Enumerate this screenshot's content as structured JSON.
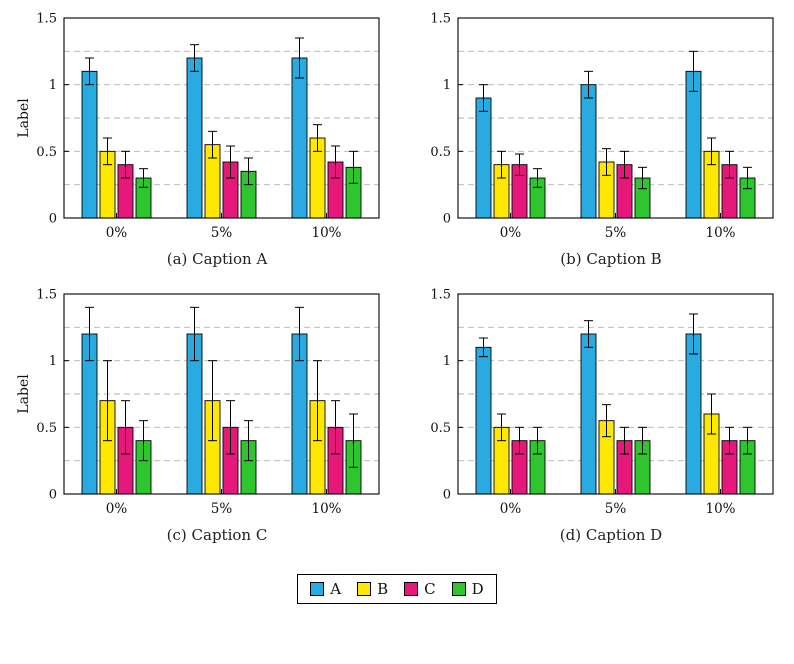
{
  "figure": {
    "background": "#ffffff"
  },
  "axis_style": {
    "axis_color": "#000000",
    "grid_color": "#b3b3b3",
    "grid_values": [
      0.25,
      0.5,
      0.75,
      1.0,
      1.25
    ],
    "grid_style": "dashed",
    "legend_position": "bottom-center"
  },
  "legend": {
    "items": [
      {
        "label": "A",
        "color": "#29ABE2"
      },
      {
        "label": "B",
        "color": "#FFE800"
      },
      {
        "label": "C",
        "color": "#E6197B"
      },
      {
        "label": "D",
        "color": "#2EC52E"
      }
    ]
  },
  "chart_data": [
    {
      "type": "bar",
      "caption": "(a) Caption A",
      "ylabel": "Label",
      "xlabel": "",
      "ylim": [
        0,
        1.5
      ],
      "yticks": [
        0,
        0.5,
        1,
        1.5
      ],
      "ytick_labels": [
        "0",
        "0.5",
        "1",
        "1.5"
      ],
      "categories": [
        "0%",
        "5%",
        "10%"
      ],
      "series": [
        {
          "name": "A",
          "color": "#29ABE2",
          "values": [
            1.1,
            1.2,
            1.2
          ],
          "errors": [
            0.1,
            0.1,
            0.15
          ]
        },
        {
          "name": "B",
          "color": "#FFE800",
          "values": [
            0.5,
            0.55,
            0.6
          ],
          "errors": [
            0.1,
            0.1,
            0.1
          ]
        },
        {
          "name": "C",
          "color": "#E6197B",
          "values": [
            0.4,
            0.42,
            0.42
          ],
          "errors": [
            0.1,
            0.12,
            0.12
          ]
        },
        {
          "name": "D",
          "color": "#2EC52E",
          "values": [
            0.3,
            0.35,
            0.38
          ],
          "errors": [
            0.07,
            0.1,
            0.12
          ]
        }
      ]
    },
    {
      "type": "bar",
      "caption": "(b) Caption B",
      "ylabel": "",
      "xlabel": "",
      "ylim": [
        0,
        1.5
      ],
      "yticks": [
        0,
        0.5,
        1,
        1.5
      ],
      "ytick_labels": [
        "0",
        "0.5",
        "1",
        "1.5"
      ],
      "categories": [
        "0%",
        "5%",
        "10%"
      ],
      "series": [
        {
          "name": "A",
          "color": "#29ABE2",
          "values": [
            0.9,
            1.0,
            1.1
          ],
          "errors": [
            0.1,
            0.1,
            0.15
          ]
        },
        {
          "name": "B",
          "color": "#FFE800",
          "values": [
            0.4,
            0.42,
            0.5
          ],
          "errors": [
            0.1,
            0.1,
            0.1
          ]
        },
        {
          "name": "C",
          "color": "#E6197B",
          "values": [
            0.4,
            0.4,
            0.4
          ],
          "errors": [
            0.08,
            0.1,
            0.1
          ]
        },
        {
          "name": "D",
          "color": "#2EC52E",
          "values": [
            0.3,
            0.3,
            0.3
          ],
          "errors": [
            0.07,
            0.08,
            0.08
          ]
        }
      ]
    },
    {
      "type": "bar",
      "caption": "(c) Caption C",
      "ylabel": "Label",
      "xlabel": "",
      "ylim": [
        0,
        1.5
      ],
      "yticks": [
        0,
        0.5,
        1,
        1.5
      ],
      "ytick_labels": [
        "0",
        "0.5",
        "1",
        "1.5"
      ],
      "categories": [
        "0%",
        "5%",
        "10%"
      ],
      "series": [
        {
          "name": "A",
          "color": "#29ABE2",
          "values": [
            1.2,
            1.2,
            1.2
          ],
          "errors": [
            0.2,
            0.2,
            0.2
          ]
        },
        {
          "name": "B",
          "color": "#FFE800",
          "values": [
            0.7,
            0.7,
            0.7
          ],
          "errors": [
            0.3,
            0.3,
            0.3
          ]
        },
        {
          "name": "C",
          "color": "#E6197B",
          "values": [
            0.5,
            0.5,
            0.5
          ],
          "errors": [
            0.2,
            0.2,
            0.2
          ]
        },
        {
          "name": "D",
          "color": "#2EC52E",
          "values": [
            0.4,
            0.4,
            0.4
          ],
          "errors": [
            0.15,
            0.15,
            0.2
          ]
        }
      ]
    },
    {
      "type": "bar",
      "caption": "(d) Caption D",
      "ylabel": "",
      "xlabel": "",
      "ylim": [
        0,
        1.5
      ],
      "yticks": [
        0,
        0.5,
        1,
        1.5
      ],
      "ytick_labels": [
        "0",
        "0.5",
        "1",
        "1.5"
      ],
      "categories": [
        "0%",
        "5%",
        "10%"
      ],
      "series": [
        {
          "name": "A",
          "color": "#29ABE2",
          "values": [
            1.1,
            1.2,
            1.2
          ],
          "errors": [
            0.07,
            0.1,
            0.15
          ]
        },
        {
          "name": "B",
          "color": "#FFE800",
          "values": [
            0.5,
            0.55,
            0.6
          ],
          "errors": [
            0.1,
            0.12,
            0.15
          ]
        },
        {
          "name": "C",
          "color": "#E6197B",
          "values": [
            0.4,
            0.4,
            0.4
          ],
          "errors": [
            0.1,
            0.1,
            0.1
          ]
        },
        {
          "name": "D",
          "color": "#2EC52E",
          "values": [
            0.4,
            0.4,
            0.4
          ],
          "errors": [
            0.1,
            0.1,
            0.1
          ]
        }
      ]
    }
  ]
}
